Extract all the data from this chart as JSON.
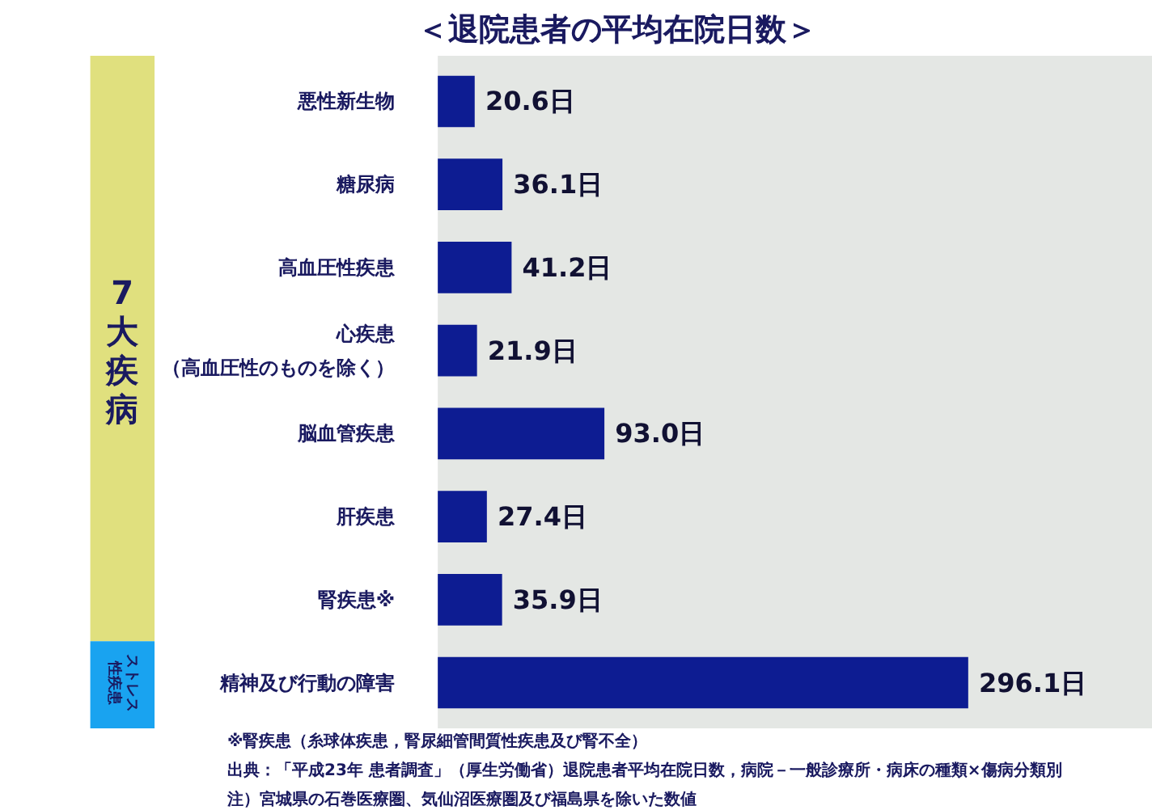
{
  "chart_data": {
    "type": "bar",
    "orientation": "horizontal",
    "title": "＜退院患者の平均在院日数＞",
    "categories": [
      "悪性新生物",
      "糖尿病",
      "高血圧性疾患",
      "心疾患（高血圧性のものを除く）",
      "脳血管疾患",
      "肝疾患",
      "腎疾患※",
      "精神及び行動の障害"
    ],
    "values": [
      20.6,
      36.1,
      41.2,
      21.9,
      93.0,
      27.4,
      35.9,
      296.1
    ],
    "value_labels": [
      "20.6日",
      "36.1日",
      "41.2日",
      "21.9日",
      "93.0日",
      "27.4日",
      "35.9日",
      "296.1日"
    ],
    "color": "#0d1c92",
    "grid": false,
    "annotations": [
      "7大疾病",
      "ストレス性疾患",
      "※腎疾患（糸球体疾患，腎尿細管間質性疾患及び腎不全）",
      "出典：「平成23年 患者調査」（厚生労働省）退院患者平均在院日数，病院－一般診療所・病床の種類×傷病分類別",
      "注）宮城県の石巻医療圏、気仙沼医療圏及び福島県を除いた数値"
    ]
  }
}
